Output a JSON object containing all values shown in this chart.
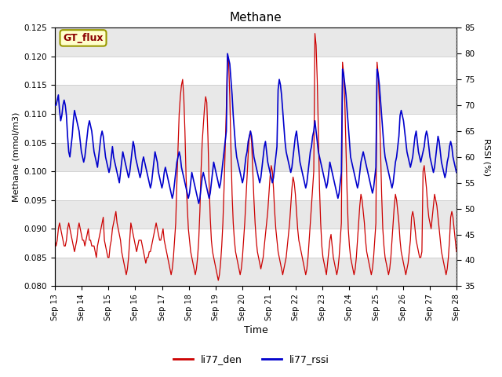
{
  "title": "Methane",
  "xlabel": "Time",
  "ylabel_left": "Methane (mmol/m3)",
  "ylabel_right": "RSSI (%)",
  "ylim_left": [
    0.08,
    0.125
  ],
  "ylim_right": [
    35,
    85
  ],
  "yticks_left": [
    0.08,
    0.085,
    0.09,
    0.095,
    0.1,
    0.105,
    0.11,
    0.115,
    0.12,
    0.125
  ],
  "yticks_right": [
    35,
    40,
    45,
    50,
    55,
    60,
    65,
    70,
    75,
    80,
    85
  ],
  "xtick_labels": [
    "Sep 13",
    "Sep 14",
    "Sep 15",
    "Sep 16",
    "Sep 17",
    "Sep 18",
    "Sep 19",
    "Sep 20",
    "Sep 21",
    "Sep 22",
    "Sep 23",
    "Sep 24",
    "Sep 25",
    "Sep 26",
    "Sep 27",
    "Sep 28"
  ],
  "color_den": "#cc0000",
  "color_rssi": "#0000cc",
  "legend_label_den": "li77_den",
  "legend_label_rssi": "li77_rssi",
  "box_label": "GT_flux",
  "box_bg": "#ffffcc",
  "box_edge": "#999900",
  "background_color": "#ffffff",
  "strip_color": "#e8e8e8",
  "den_data": [
    0.088,
    0.087,
    0.088,
    0.09,
    0.091,
    0.09,
    0.089,
    0.088,
    0.087,
    0.087,
    0.088,
    0.09,
    0.091,
    0.09,
    0.089,
    0.088,
    0.087,
    0.086,
    0.087,
    0.088,
    0.09,
    0.091,
    0.09,
    0.089,
    0.088,
    0.088,
    0.087,
    0.088,
    0.089,
    0.09,
    0.088,
    0.088,
    0.087,
    0.087,
    0.087,
    0.086,
    0.085,
    0.087,
    0.088,
    0.089,
    0.09,
    0.091,
    0.092,
    0.088,
    0.087,
    0.086,
    0.085,
    0.085,
    0.087,
    0.088,
    0.09,
    0.091,
    0.092,
    0.093,
    0.091,
    0.09,
    0.089,
    0.088,
    0.086,
    0.085,
    0.084,
    0.083,
    0.082,
    0.083,
    0.085,
    0.088,
    0.091,
    0.09,
    0.089,
    0.088,
    0.087,
    0.086,
    0.087,
    0.088,
    0.088,
    0.088,
    0.087,
    0.086,
    0.085,
    0.084,
    0.085,
    0.085,
    0.086,
    0.086,
    0.087,
    0.088,
    0.089,
    0.09,
    0.091,
    0.09,
    0.089,
    0.088,
    0.088,
    0.089,
    0.09,
    0.088,
    0.087,
    0.086,
    0.085,
    0.084,
    0.083,
    0.082,
    0.083,
    0.085,
    0.088,
    0.091,
    0.098,
    0.104,
    0.11,
    0.113,
    0.115,
    0.116,
    0.113,
    0.107,
    0.099,
    0.094,
    0.09,
    0.088,
    0.086,
    0.085,
    0.084,
    0.083,
    0.082,
    0.083,
    0.085,
    0.088,
    0.093,
    0.1,
    0.105,
    0.108,
    0.111,
    0.113,
    0.112,
    0.106,
    0.098,
    0.092,
    0.088,
    0.086,
    0.085,
    0.084,
    0.083,
    0.082,
    0.081,
    0.082,
    0.084,
    0.087,
    0.091,
    0.097,
    0.104,
    0.111,
    0.12,
    0.119,
    0.113,
    0.104,
    0.096,
    0.091,
    0.088,
    0.086,
    0.085,
    0.084,
    0.083,
    0.082,
    0.083,
    0.085,
    0.088,
    0.091,
    0.095,
    0.099,
    0.103,
    0.106,
    0.107,
    0.105,
    0.1,
    0.095,
    0.091,
    0.088,
    0.086,
    0.085,
    0.084,
    0.083,
    0.084,
    0.085,
    0.087,
    0.089,
    0.091,
    0.093,
    0.096,
    0.099,
    0.101,
    0.1,
    0.097,
    0.093,
    0.09,
    0.088,
    0.086,
    0.085,
    0.084,
    0.083,
    0.082,
    0.083,
    0.084,
    0.085,
    0.087,
    0.089,
    0.091,
    0.094,
    0.097,
    0.099,
    0.098,
    0.096,
    0.093,
    0.09,
    0.088,
    0.087,
    0.086,
    0.085,
    0.084,
    0.083,
    0.082,
    0.083,
    0.085,
    0.088,
    0.091,
    0.094,
    0.097,
    0.1,
    0.124,
    0.122,
    0.116,
    0.107,
    0.097,
    0.091,
    0.087,
    0.085,
    0.084,
    0.083,
    0.082,
    0.084,
    0.086,
    0.088,
    0.089,
    0.087,
    0.085,
    0.084,
    0.083,
    0.082,
    0.083,
    0.085,
    0.088,
    0.091,
    0.119,
    0.117,
    0.112,
    0.104,
    0.096,
    0.09,
    0.087,
    0.085,
    0.084,
    0.083,
    0.082,
    0.083,
    0.085,
    0.088,
    0.091,
    0.094,
    0.096,
    0.095,
    0.093,
    0.091,
    0.088,
    0.086,
    0.085,
    0.084,
    0.083,
    0.082,
    0.083,
    0.085,
    0.088,
    0.091,
    0.119,
    0.117,
    0.112,
    0.104,
    0.096,
    0.09,
    0.087,
    0.085,
    0.084,
    0.083,
    0.082,
    0.083,
    0.085,
    0.088,
    0.091,
    0.094,
    0.096,
    0.095,
    0.093,
    0.091,
    0.088,
    0.086,
    0.085,
    0.084,
    0.083,
    0.082,
    0.083,
    0.084,
    0.086,
    0.088,
    0.092,
    0.093,
    0.092,
    0.09,
    0.088,
    0.087,
    0.086,
    0.085,
    0.085,
    0.086,
    0.1,
    0.101,
    0.099,
    0.097,
    0.094,
    0.092,
    0.091,
    0.09,
    0.092,
    0.094,
    0.096,
    0.095,
    0.094,
    0.092,
    0.09,
    0.088,
    0.086,
    0.085,
    0.084,
    0.083,
    0.082,
    0.083,
    0.085,
    0.088,
    0.092,
    0.093,
    0.092,
    0.09,
    0.088,
    0.086
  ],
  "rssi_data": [
    70,
    70,
    71,
    72,
    69,
    67,
    68,
    70,
    71,
    70,
    68,
    64,
    61,
    60,
    62,
    64,
    67,
    69,
    68,
    67,
    66,
    65,
    63,
    61,
    60,
    59,
    60,
    62,
    64,
    66,
    67,
    66,
    65,
    63,
    61,
    60,
    59,
    58,
    60,
    62,
    64,
    65,
    64,
    62,
    60,
    59,
    58,
    57,
    58,
    60,
    62,
    60,
    59,
    58,
    57,
    56,
    55,
    57,
    59,
    61,
    60,
    59,
    58,
    57,
    56,
    57,
    59,
    61,
    63,
    62,
    60,
    59,
    58,
    57,
    56,
    57,
    59,
    60,
    59,
    58,
    57,
    56,
    55,
    54,
    55,
    57,
    59,
    61,
    60,
    59,
    57,
    56,
    55,
    54,
    55,
    57,
    58,
    57,
    56,
    55,
    54,
    53,
    52,
    53,
    55,
    57,
    59,
    60,
    61,
    60,
    58,
    57,
    56,
    55,
    54,
    53,
    52,
    53,
    55,
    57,
    56,
    55,
    54,
    53,
    52,
    51,
    52,
    54,
    56,
    57,
    56,
    55,
    54,
    53,
    52,
    53,
    55,
    57,
    59,
    58,
    57,
    56,
    55,
    54,
    55,
    57,
    59,
    61,
    63,
    65,
    80,
    79,
    78,
    75,
    72,
    68,
    65,
    62,
    60,
    59,
    58,
    57,
    56,
    55,
    56,
    58,
    60,
    61,
    63,
    64,
    65,
    64,
    62,
    60,
    59,
    58,
    57,
    56,
    55,
    56,
    58,
    60,
    62,
    63,
    61,
    59,
    58,
    57,
    56,
    55,
    56,
    58,
    60,
    62,
    73,
    75,
    74,
    72,
    69,
    66,
    63,
    61,
    60,
    59,
    58,
    57,
    58,
    60,
    62,
    64,
    65,
    63,
    61,
    59,
    58,
    57,
    56,
    55,
    54,
    55,
    57,
    59,
    61,
    62,
    64,
    65,
    67,
    65,
    63,
    61,
    60,
    59,
    58,
    57,
    56,
    55,
    54,
    55,
    57,
    59,
    58,
    57,
    56,
    55,
    54,
    53,
    52,
    53,
    55,
    57,
    77,
    76,
    74,
    72,
    69,
    66,
    63,
    60,
    59,
    58,
    57,
    56,
    55,
    54,
    55,
    57,
    59,
    60,
    61,
    60,
    59,
    58,
    57,
    56,
    55,
    54,
    53,
    54,
    56,
    58,
    77,
    76,
    74,
    71,
    68,
    65,
    62,
    60,
    59,
    58,
    57,
    56,
    55,
    54,
    55,
    57,
    59,
    60,
    62,
    64,
    68,
    69,
    68,
    67,
    65,
    63,
    61,
    60,
    59,
    58,
    59,
    60,
    62,
    64,
    65,
    63,
    61,
    60,
    59,
    60,
    61,
    62,
    64,
    65,
    64,
    62,
    60,
    59,
    58,
    57,
    58,
    60,
    62,
    64,
    63,
    61,
    59,
    58,
    57,
    56,
    57,
    59,
    60,
    62,
    63,
    62,
    60,
    59,
    58,
    57
  ]
}
